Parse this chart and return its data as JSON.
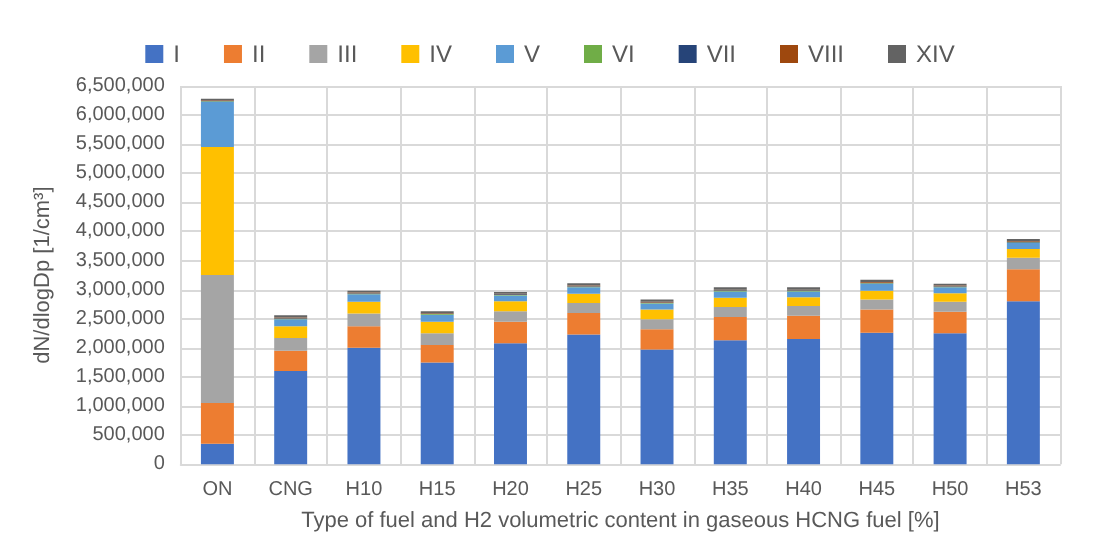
{
  "chart_data": {
    "type": "bar",
    "stacked": true,
    "xlabel": "Type of fuel and H2 volumetric content in gaseous HCNG fuel [%]",
    "ylabel": "dN/dlogDp [1/cm³]",
    "categories": [
      "ON",
      "CNG",
      "H10",
      "H15",
      "H20",
      "H25",
      "H30",
      "H35",
      "H40",
      "H45",
      "H50",
      "H53"
    ],
    "series": [
      {
        "name": "I",
        "color": "#4472c4",
        "values": [
          350000,
          1600000,
          2000000,
          1750000,
          2080000,
          2230000,
          1970000,
          2130000,
          2150000,
          2260000,
          2250000,
          2800000
        ]
      },
      {
        "name": "II",
        "color": "#ed7d31",
        "values": [
          700000,
          350000,
          370000,
          300000,
          370000,
          370000,
          350000,
          400000,
          400000,
          400000,
          370000,
          550000
        ]
      },
      {
        "name": "III",
        "color": "#a5a5a5",
        "values": [
          2200000,
          220000,
          220000,
          200000,
          180000,
          170000,
          170000,
          170000,
          170000,
          170000,
          170000,
          200000
        ]
      },
      {
        "name": "IV",
        "color": "#ffc000",
        "values": [
          2200000,
          200000,
          200000,
          200000,
          170000,
          160000,
          170000,
          160000,
          150000,
          150000,
          150000,
          150000
        ]
      },
      {
        "name": "V",
        "color": "#5b9bd5",
        "values": [
          780000,
          120000,
          130000,
          120000,
          100000,
          110000,
          100000,
          110000,
          100000,
          120000,
          100000,
          100000
        ]
      },
      {
        "name": "VI",
        "color": "#70ad47",
        "values": [
          10000,
          10000,
          10000,
          10000,
          10000,
          10000,
          10000,
          10000,
          10000,
          10000,
          10000,
          10000
        ]
      },
      {
        "name": "VII",
        "color": "#264478",
        "values": [
          10000,
          10000,
          10000,
          10000,
          10000,
          10000,
          10000,
          10000,
          10000,
          10000,
          10000,
          10000
        ]
      },
      {
        "name": "VIII",
        "color": "#9e480e",
        "values": [
          10000,
          10000,
          10000,
          10000,
          10000,
          10000,
          10000,
          10000,
          10000,
          10000,
          10000,
          10000
        ]
      },
      {
        "name": "XIV",
        "color": "#636363",
        "values": [
          20000,
          40000,
          30000,
          30000,
          30000,
          40000,
          40000,
          40000,
          40000,
          40000,
          30000,
          40000
        ]
      }
    ],
    "ylim": [
      0,
      6500000
    ],
    "yticks": [
      0,
      {
        "value": 500000,
        "label": "500,000"
      },
      {
        "value": 1000000,
        "label": "1,000,000"
      },
      {
        "value": 1500000,
        "label": "1,500,000"
      },
      {
        "value": 2000000,
        "label": "2,000,000"
      },
      {
        "value": 2500000,
        "label": "2,500,000"
      },
      {
        "value": 3000000,
        "label": "3,000,000"
      },
      {
        "value": 3500000,
        "label": "3,500,000"
      },
      {
        "value": 4000000,
        "label": "4,000,000"
      },
      {
        "value": 4500000,
        "label": "4,500,000"
      },
      {
        "value": 5000000,
        "label": "5,000,000"
      },
      {
        "value": 5500000,
        "label": "5,500,000"
      },
      {
        "value": 6000000,
        "label": "6,000,000"
      },
      {
        "value": 6500000,
        "label": "6,500,000"
      }
    ],
    "grid": true,
    "legend": "top"
  }
}
